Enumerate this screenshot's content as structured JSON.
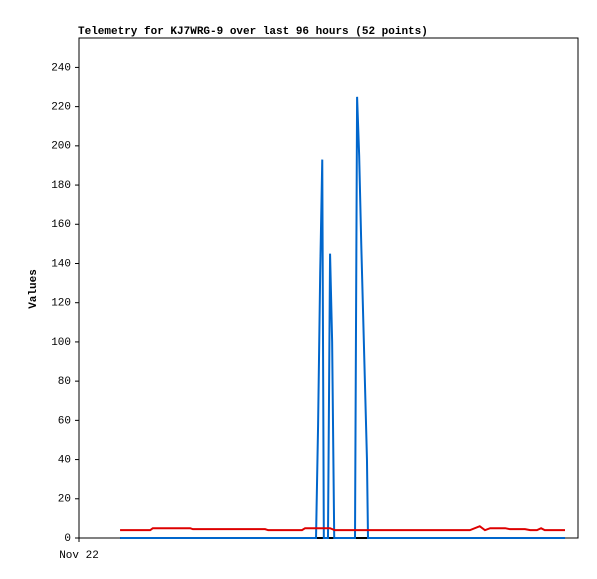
{
  "chart_data": {
    "type": "line",
    "title": "Telemetry for KJ7WRG-9 over last 96 hours (52 points)",
    "y_label": "Values",
    "xlim": [
      0,
      96
    ],
    "xticks": [
      {
        "value": 0,
        "label": "Nov 22"
      }
    ],
    "ylim": [
      0,
      255
    ],
    "yticks": [
      0,
      20,
      40,
      60,
      80,
      100,
      120,
      140,
      160,
      180,
      200,
      220,
      240
    ],
    "series": [
      {
        "color": "#000000",
        "x": [
          7.9,
          93.5
        ],
        "values": [
          0,
          0
        ]
      },
      {
        "color": "#0066cc",
        "x": [
          7.9,
          45.6,
          46.0,
          46.4,
          46.8,
          47.1,
          47.9,
          48.3,
          48.7,
          49.1,
          53.1,
          53.5,
          53.9,
          54.3,
          54.6,
          55.0,
          55.4,
          55.6,
          93.5
        ],
        "values": [
          0,
          0,
          58,
          135,
          193,
          0,
          0,
          145,
          100,
          0,
          0,
          225,
          195,
          150,
          120,
          80,
          40,
          0,
          0
        ]
      },
      {
        "color": "#dd0000",
        "x": [
          7.9,
          13.7,
          14.2,
          21.4,
          21.9,
          35.8,
          36.4,
          42.9,
          43.5,
          48.3,
          49.2,
          75.2,
          77.1,
          78.1,
          79.1,
          82.0,
          82.9,
          85.8,
          86.8,
          88.1,
          88.9,
          89.6,
          93.5
        ],
        "values": [
          4,
          4,
          5,
          5,
          4.5,
          4.5,
          4,
          4,
          5,
          5,
          4,
          4,
          6,
          4,
          5,
          5,
          4.5,
          4.5,
          4,
          4,
          5,
          4,
          4
        ]
      }
    ]
  }
}
